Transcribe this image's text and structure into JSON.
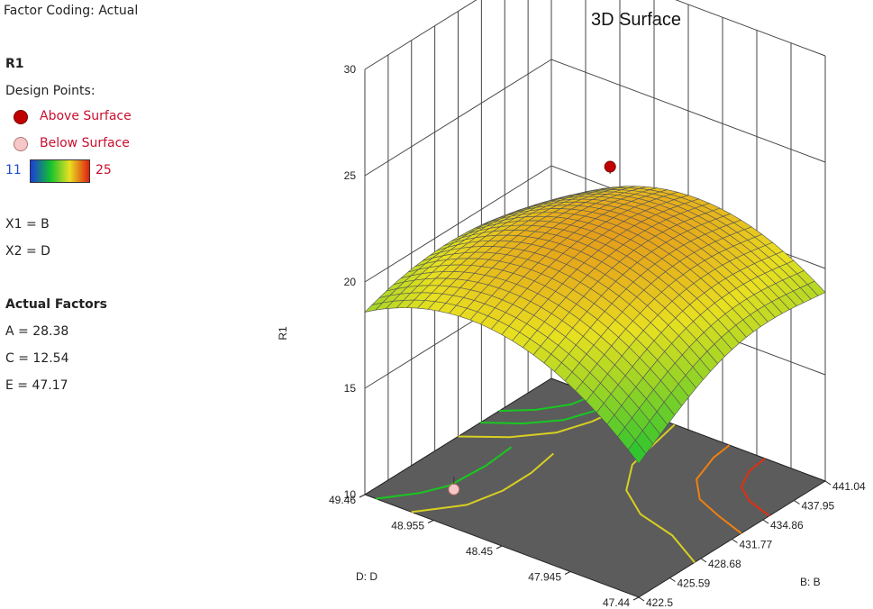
{
  "legend": {
    "coding": "Factor Coding: Actual",
    "response": "R1",
    "design_points_label": "Design Points:",
    "above_label": "Above Surface",
    "below_label": "Below Surface",
    "scale_min": "11",
    "scale_max": "25",
    "above_color": "#c00000",
    "below_color": "#f7c7c7",
    "x1": "X1 = B",
    "x2": "X2 = D",
    "actual_factors_title": "Actual Factors",
    "factors": [
      "A = 28.38",
      "C = 12.54",
      "E = 47.17"
    ]
  },
  "chart_data": {
    "type": "surface3d",
    "title": "3D Surface",
    "zlabel": "R1",
    "xlabel": "B: B",
    "ylabel": "D: D",
    "z_ticks": [
      "10",
      "15",
      "20",
      "25",
      "30"
    ],
    "x_ticks": [
      "422.5",
      "425.59",
      "428.68",
      "431.77",
      "434.86",
      "437.95",
      "441.04"
    ],
    "y_ticks": [
      "47.44",
      "47.945",
      "48.45",
      "48.955",
      "49.46"
    ],
    "zlim": [
      10,
      30
    ],
    "xlim": [
      422.5,
      441.04
    ],
    "ylim": [
      47.44,
      49.46
    ],
    "color_scale": [
      "#1e3bdc",
      "#10c030",
      "#e8e020",
      "#e02010"
    ],
    "floor_color": "#5c5c5c",
    "design_points": [
      {
        "B": 433.4,
        "D": 48.46,
        "R1": 24.6,
        "position": "above"
      },
      {
        "B": 423.8,
        "D": 48.9,
        "R1": 11.2,
        "position": "below"
      }
    ]
  }
}
